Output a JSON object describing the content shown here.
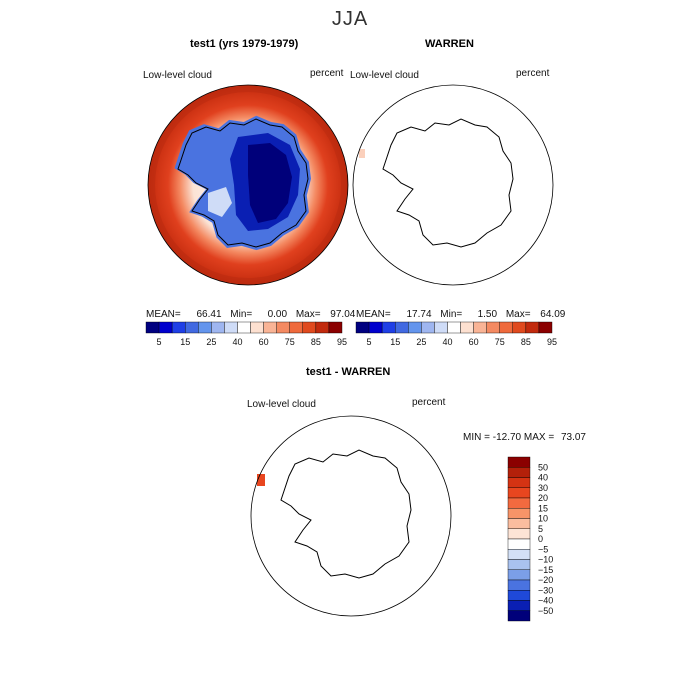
{
  "figure": {
    "title": "JJA",
    "colors": {
      "land_outline": "#000000",
      "ocean_red": "#e0401e"
    }
  },
  "chart_data": [
    {
      "type": "heatmap",
      "title": "test1 (yrs 1979-1979)",
      "variable": "Low-level cloud",
      "units": "percent",
      "stats": {
        "mean_label": "MEAN=",
        "mean": "66.41",
        "min_label": "Min=",
        "min": "0.00",
        "max_label": "Max=",
        "max": "97.04"
      },
      "colorbar": {
        "levels": [
          "5",
          "15",
          "25",
          "40",
          "60",
          "75",
          "85",
          "95"
        ],
        "colors": [
          "#000080",
          "#0000cd",
          "#1f3fe6",
          "#4169e1",
          "#6495ed",
          "#9fb6f0",
          "#cfdcf7",
          "#ffffff",
          "#fde0d0",
          "#f9b496",
          "#f48a62",
          "#ef6a3c",
          "#e04a1e",
          "#c22a0d",
          "#8b0000"
        ]
      }
    },
    {
      "type": "heatmap",
      "title": "WARREN",
      "variable": "Low-level cloud",
      "units": "percent",
      "stats": {
        "mean_label": "MEAN=",
        "mean": "17.74",
        "min_label": "Min=",
        "min": "1.50",
        "max_label": "Max=",
        "max": "64.09"
      },
      "colorbar": {
        "levels": [
          "5",
          "15",
          "25",
          "40",
          "60",
          "75",
          "85",
          "95"
        ],
        "colors": [
          "#000080",
          "#0000cd",
          "#1f3fe6",
          "#4169e1",
          "#6495ed",
          "#9fb6f0",
          "#cfdcf7",
          "#ffffff",
          "#fde0d0",
          "#f9b496",
          "#f48a62",
          "#ef6a3c",
          "#e04a1e",
          "#c22a0d",
          "#8b0000"
        ]
      }
    },
    {
      "type": "heatmap",
      "title": "test1 - WARREN",
      "variable": "Low-level cloud",
      "units": "percent",
      "stats": {
        "min_label": "MIN =",
        "min": "-12.70",
        "max_label": "MAX =",
        "max": "73.07"
      },
      "colorbar": {
        "levels": [
          "50",
          "40",
          "30",
          "20",
          "15",
          "10",
          "5",
          "0",
          "−5",
          "−10",
          "−15",
          "−20",
          "−30",
          "−40",
          "−50"
        ],
        "colors": [
          "#8b0000",
          "#b3200a",
          "#d43313",
          "#e8461f",
          "#f26a3f",
          "#f79468",
          "#fbbd9f",
          "#fde4d6",
          "#ffffff",
          "#d3e0f6",
          "#a9c2ef",
          "#7b9fe8",
          "#4a73e0",
          "#1f49d9",
          "#0a1fb3",
          "#00007a"
        ]
      }
    }
  ]
}
